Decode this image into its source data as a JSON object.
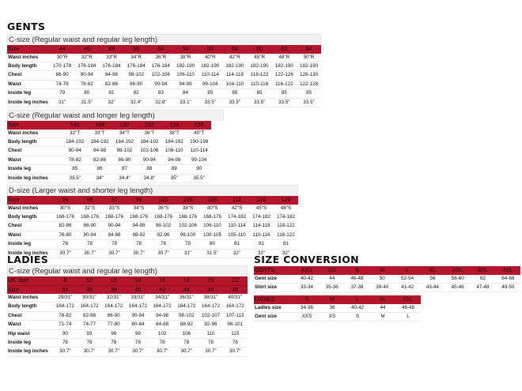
{
  "gents": {
    "title": "GENTS",
    "c_regular": {
      "subtitle": "C-size (Regular waist and regular leg length)",
      "header": [
        "Size",
        "44",
        "46",
        "48",
        "50",
        "52",
        "54",
        "56",
        "58",
        "60",
        "62",
        "64"
      ],
      "rows": [
        [
          "Waist inches",
          "30\"R",
          "32\"R",
          "33\"R",
          "34\"R",
          "36\"R",
          "38\"R",
          "40\"R",
          "42\"R",
          "45\"R",
          "48\"R",
          "50\"R"
        ],
        [
          "Body length",
          "170-178",
          "176-184",
          "176-184",
          "176-184",
          "176-184",
          "182-190",
          "182-190",
          "182-190",
          "182-190",
          "182-190",
          "182-190"
        ],
        [
          "Chest",
          "86-90",
          "90-94",
          "94-98",
          "98-102",
          "102-106",
          "106-110",
          "110-114",
          "114-118",
          "118-122",
          "122-126",
          "126-130"
        ],
        [
          "Waist",
          "74-78",
          "78-82",
          "82-86",
          "86-90",
          "90-94",
          "94-99",
          "99-104",
          "104-110",
          "110-116",
          "116-122",
          "122-128"
        ],
        [
          "Inside leg",
          "79",
          "80",
          "81",
          "82",
          "83",
          "84",
          "85",
          "85",
          "85",
          "85",
          "85"
        ],
        [
          "Inside leg inches",
          "31\"",
          "31.5\"",
          "32\"",
          "32.4\"",
          "32.8\"",
          "33.1\"",
          "33.5\"",
          "33.5\"",
          "33.5\"",
          "33.5\"",
          "33.5\""
        ]
      ]
    },
    "c_longer": {
      "subtitle": "C-size (Regular waist and longer leg length)",
      "header": [
        "Size",
        "146",
        "148",
        "150",
        "152",
        "154",
        "156"
      ],
      "rows": [
        [
          "Waist inches",
          "32\"T",
          "33\"T",
          "34\"T",
          "36\"T",
          "38\"T",
          "40\"T"
        ],
        [
          "Body length",
          "184-192",
          "184-192",
          "184-192",
          "184-192",
          "184-192",
          "190-198"
        ],
        [
          "Chest",
          "90-94",
          "94-98",
          "98-102",
          "102-106",
          "106-110",
          "110-114"
        ],
        [
          "Waist",
          "78-82",
          "82-86",
          "86-90",
          "90-94",
          "94-99",
          "99-104"
        ],
        [
          "Inside leg",
          "85",
          "86",
          "87",
          "88",
          "89",
          "90"
        ],
        [
          "Inside leg inches",
          "33.5\"",
          "34\"",
          "34.4\"",
          "34.8\"",
          "35\"",
          "35.5\""
        ]
      ]
    },
    "d_size": {
      "subtitle": "D-size (Larger waist and shorter leg length)",
      "header": [
        "Size",
        "94",
        "96",
        "92",
        "96",
        "100",
        "104",
        "108",
        "112",
        "116",
        "120"
      ],
      "rows": [
        [
          "Waist inches",
          "30\"S",
          "32\"S",
          "33\"S",
          "34\"S",
          "36\"S",
          "38\"S",
          "40\"S",
          "42\"S",
          "45\"S",
          "48\"S"
        ],
        [
          "Body length",
          "168-176",
          "168-176",
          "168-176",
          "168-176",
          "168-176",
          "168-176",
          "168-176",
          "174-182",
          "174-182",
          "174-182"
        ],
        [
          "Chest",
          "82-86",
          "86-90",
          "90-94",
          "94-98",
          "98-102",
          "102-106",
          "106-110",
          "110-114",
          "114-118",
          "118-122"
        ],
        [
          "Waist",
          "76-80",
          "80-84",
          "84-88",
          "88-92",
          "92-96",
          "96-100",
          "100-105",
          "105-110",
          "110-116",
          "116-122"
        ],
        [
          "Inside leg",
          "78",
          "78",
          "78",
          "78",
          "78",
          "79",
          "80",
          "81",
          "81",
          "81"
        ],
        [
          "Inside leg inches",
          "30.7\"",
          "30.7\"",
          "30.7\"",
          "30.7\"",
          "30.7\"",
          "31\"",
          "31.5\"",
          "32\"",
          "32\"",
          "32\""
        ]
      ]
    }
  },
  "ladies": {
    "title": "LADIES",
    "c_regular": {
      "subtitle": "C-size (Regular waist and regular leg length)",
      "header_uk": [
        "UK Size",
        "8",
        "10",
        "12",
        "14",
        "16",
        "18",
        "20",
        "22"
      ],
      "header": [
        "Size",
        "34",
        "36",
        "38",
        "40",
        "42",
        "44",
        "46",
        "48"
      ],
      "rows": [
        [
          "Waist inches",
          "29/31\"",
          "30/31\"",
          "32/31\"",
          "33/31\"",
          "34/31\"",
          "36/31\"",
          "38/31\"",
          "40/31\""
        ],
        [
          "Body length",
          "164-172",
          "164-172",
          "164-172",
          "164-172",
          "164-172",
          "164-172",
          "164-172",
          "164-172"
        ],
        [
          "Chest",
          "78-82",
          "82-86",
          "86-90",
          "90-94",
          "94-98",
          "98-102",
          "102-107",
          "107-113"
        ],
        [
          "Waist",
          "71-74",
          "74-77",
          "77-80",
          "80-84",
          "84-88",
          "88-92",
          "92-96",
          "96-101"
        ],
        [
          "Hip waist",
          "90",
          "93",
          "96",
          "99",
          "102",
          "106",
          "110",
          "115"
        ],
        [
          "Inside leg",
          "78",
          "78",
          "78",
          "78",
          "78",
          "78",
          "78",
          "78"
        ],
        [
          "Inside leg inches",
          "30.7\"",
          "30.7\"",
          "30.7\"",
          "30.7\"",
          "30.7\"",
          "30.7\"",
          "30.7\"",
          "30.7\""
        ]
      ]
    }
  },
  "conversion": {
    "title": "SIZE CONVERSION",
    "gents": {
      "header": [
        "GENTS",
        "XXS",
        "XS",
        "S",
        "M",
        "L",
        "XL",
        "XXL",
        "3XL",
        "4XL"
      ],
      "rows": [
        [
          "Gent size",
          "40-42",
          "44",
          "46-48",
          "50",
          "52-54",
          "56",
          "58-60",
          "62",
          "64-66"
        ],
        [
          "Shirt size",
          "33-34",
          "35-36",
          "37-38",
          "39-40",
          "41-42",
          "43-44",
          "45-46",
          "47-48",
          "49-50"
        ]
      ]
    },
    "ladies": {
      "header": [
        "LADIES",
        "S",
        "M",
        "L",
        "XL",
        "XXL"
      ],
      "rows": [
        [
          "Ladies size",
          "34-36",
          "38",
          "40-42",
          "44",
          "46-48"
        ],
        [
          "Gent size",
          "XXS",
          "XS",
          "S",
          "M",
          "L"
        ]
      ]
    }
  },
  "colors": {
    "accent": "#b3152b",
    "subtitle_bg": "#f2f2f2"
  }
}
